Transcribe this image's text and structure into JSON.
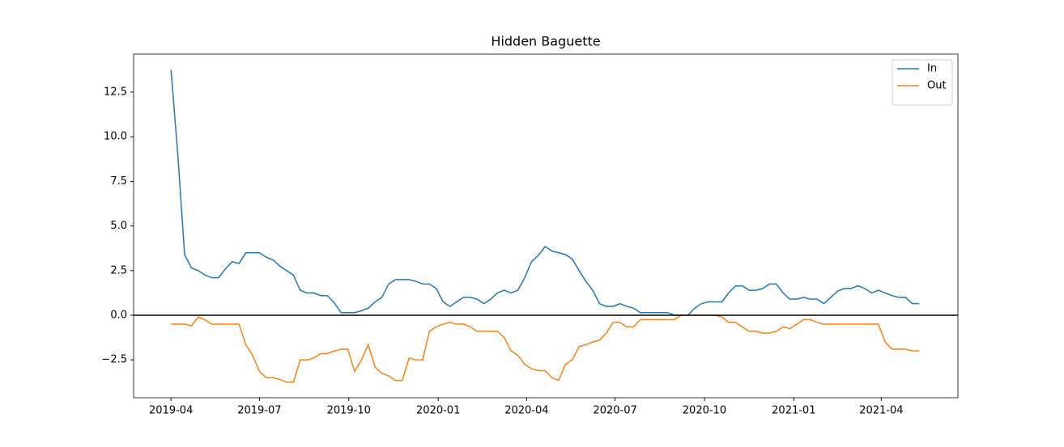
{
  "chart_data": {
    "type": "line",
    "title": "Hidden Baguette",
    "xlim": [
      -5.5,
      115.7
    ],
    "xticks": [
      {
        "value": 0,
        "label": "2019-04"
      },
      {
        "value": 13,
        "label": "2019-07"
      },
      {
        "value": 26.14,
        "label": "2019-10"
      },
      {
        "value": 39.29,
        "label": "2020-01"
      },
      {
        "value": 52.29,
        "label": "2020-04"
      },
      {
        "value": 65.29,
        "label": "2020-07"
      },
      {
        "value": 78.43,
        "label": "2020-10"
      },
      {
        "value": 91.57,
        "label": "2021-01"
      },
      {
        "value": 104.43,
        "label": "2021-04"
      }
    ],
    "ylim": [
      -4.62,
      14.63
    ],
    "yticks": [
      {
        "value": -2.5,
        "label": "−2.5"
      },
      {
        "value": 0,
        "label": "0.0"
      },
      {
        "value": 2.5,
        "label": "2.5"
      },
      {
        "value": 5,
        "label": "5.0"
      },
      {
        "value": 7.5,
        "label": "7.5"
      },
      {
        "value": 10,
        "label": "10.0"
      },
      {
        "value": 12.5,
        "label": "12.5"
      }
    ],
    "hline": 0,
    "legend": "upper right",
    "series": [
      {
        "name": "In",
        "color": "#1f77b4",
        "values": [
          13.75,
          9.0,
          3.4,
          2.65,
          2.5,
          2.25,
          2.1,
          2.1,
          2.6,
          3.0,
          2.9,
          3.5,
          3.5,
          3.5,
          3.25,
          3.1,
          2.75,
          2.5,
          2.25,
          1.4,
          1.25,
          1.25,
          1.1,
          1.1,
          0.7,
          0.15,
          0.15,
          0.15,
          0.25,
          0.4,
          0.75,
          1.0,
          1.75,
          2.0,
          2.0,
          2.0,
          1.9,
          1.75,
          1.75,
          1.5,
          0.75,
          0.5,
          0.75,
          1.0,
          1.0,
          0.9,
          0.65,
          0.9,
          1.25,
          1.4,
          1.25,
          1.4,
          2.1,
          3.0,
          3.35,
          3.85,
          3.6,
          3.5,
          3.4,
          3.15,
          2.5,
          1.9,
          1.4,
          0.65,
          0.5,
          0.5,
          0.65,
          0.5,
          0.4,
          0.15,
          0.15,
          0.15,
          0.15,
          0.15,
          0.0,
          0.0,
          0.0,
          0.4,
          0.65,
          0.75,
          0.75,
          0.75,
          1.25,
          1.65,
          1.65,
          1.4,
          1.4,
          1.5,
          1.75,
          1.75,
          1.25,
          0.9,
          0.9,
          1.0,
          0.9,
          0.9,
          0.65,
          1.0,
          1.35,
          1.5,
          1.5,
          1.65,
          1.5,
          1.25,
          1.4,
          1.25,
          1.1,
          1.0,
          1.0,
          0.65,
          0.65
        ]
      },
      {
        "name": "Out",
        "color": "#ff7f0e",
        "values": [
          -0.5,
          -0.5,
          -0.5,
          -0.6,
          -0.1,
          -0.25,
          -0.5,
          -0.5,
          -0.5,
          -0.5,
          -0.5,
          -1.65,
          -2.25,
          -3.15,
          -3.5,
          -3.5,
          -3.6,
          -3.75,
          -3.75,
          -2.5,
          -2.5,
          -2.4,
          -2.15,
          -2.15,
          -2.0,
          -1.9,
          -1.9,
          -3.15,
          -2.5,
          -1.65,
          -2.9,
          -3.25,
          -3.4,
          -3.65,
          -3.65,
          -2.4,
          -2.5,
          -2.5,
          -0.9,
          -0.65,
          -0.5,
          -0.4,
          -0.5,
          -0.5,
          -0.65,
          -0.9,
          -0.9,
          -0.9,
          -0.9,
          -1.25,
          -2.0,
          -2.25,
          -2.75,
          -3.0,
          -3.1,
          -3.1,
          -3.5,
          -3.65,
          -2.75,
          -2.5,
          -1.75,
          -1.65,
          -1.5,
          -1.4,
          -1.0,
          -0.4,
          -0.4,
          -0.65,
          -0.65,
          -0.25,
          -0.25,
          -0.25,
          -0.25,
          -0.25,
          -0.25,
          0.0,
          0.0,
          0.0,
          0.0,
          0.0,
          0.0,
          -0.1,
          -0.4,
          -0.4,
          -0.65,
          -0.9,
          -0.9,
          -1.0,
          -1.0,
          -0.9,
          -0.65,
          -0.75,
          -0.5,
          -0.25,
          -0.25,
          -0.4,
          -0.5,
          -0.5,
          -0.5,
          -0.5,
          -0.5,
          -0.5,
          -0.5,
          -0.5,
          -0.5,
          -1.5,
          -1.9,
          -1.9,
          -1.9,
          -2.0,
          -2.0
        ]
      }
    ]
  }
}
